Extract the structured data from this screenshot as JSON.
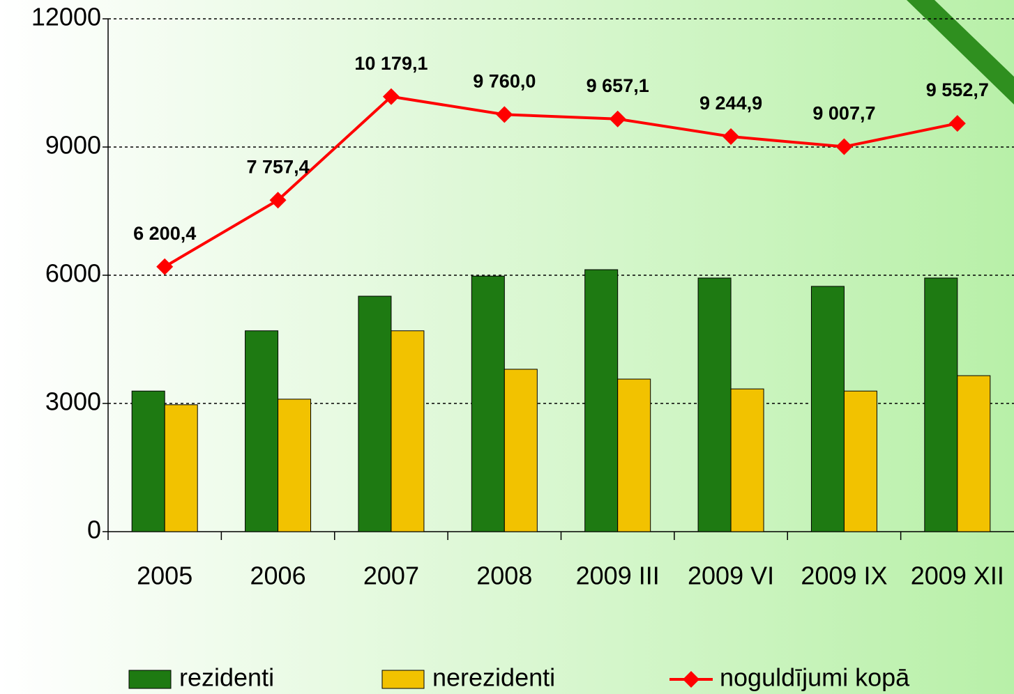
{
  "chart_data": {
    "type": "bar_line",
    "categories": [
      "2005",
      "2006",
      "2007",
      "2008",
      "2009 III",
      "2009 VI",
      "2009 IX",
      "2009 XII"
    ],
    "series": [
      {
        "name": "rezidenti",
        "type": "bar",
        "color": "#1e7a12",
        "values": [
          3290,
          4700,
          5510,
          5980,
          6130,
          5935,
          5740,
          5935
        ]
      },
      {
        "name": "nerezidenti",
        "type": "bar",
        "color": "#f2c200",
        "values": [
          2970,
          3100,
          4700,
          3800,
          3570,
          3340,
          3290,
          3650
        ]
      },
      {
        "name": "noguldījumi kopā",
        "type": "line",
        "color": "#ff0000",
        "values": [
          6200.4,
          7757.4,
          10179.1,
          9760.0,
          9657.1,
          9244.9,
          9007.7,
          9552.7
        ],
        "value_labels": [
          "6 200,4",
          "7 757,4",
          "10 179,1",
          "9 760,0",
          "9 657,1",
          "9 244,9",
          "9 007,7",
          "9 552,7"
        ]
      }
    ],
    "ylim": [
      0,
      12000
    ],
    "yticks": [
      0,
      3000,
      6000,
      9000,
      12000
    ],
    "grid": true,
    "legend": "bottom"
  }
}
